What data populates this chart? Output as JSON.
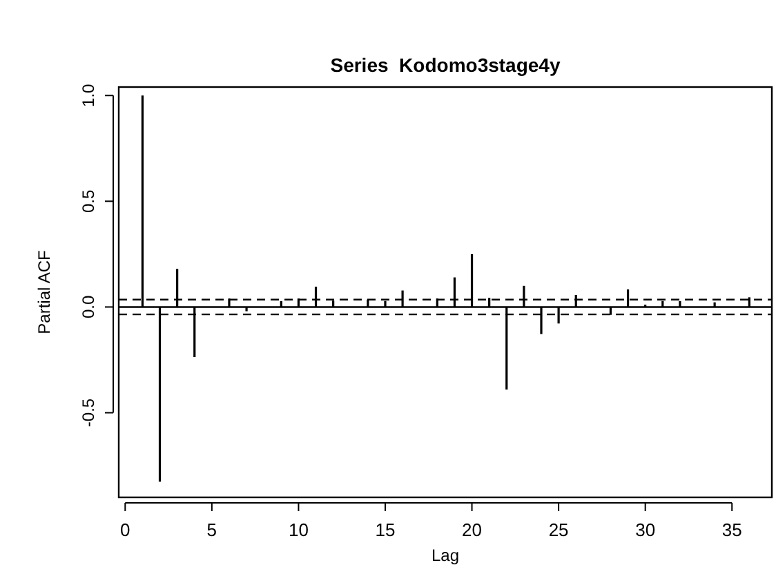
{
  "chart_data": {
    "type": "bar",
    "title": "Series  Kodomo3stage4y",
    "xlabel": "Lag",
    "ylabel": "Partial ACF",
    "x": [
      1,
      2,
      3,
      4,
      5,
      6,
      7,
      8,
      9,
      10,
      11,
      12,
      13,
      14,
      15,
      16,
      17,
      18,
      19,
      20,
      21,
      22,
      23,
      24,
      25,
      26,
      27,
      28,
      29,
      30,
      31,
      32,
      33,
      34,
      35,
      36
    ],
    "values": [
      1.0,
      -0.826,
      0.18,
      -0.237,
      null,
      0.04,
      -0.02,
      null,
      0.028,
      0.04,
      0.096,
      0.03,
      null,
      0.035,
      0.028,
      0.078,
      null,
      0.04,
      0.14,
      0.25,
      0.043,
      -0.39,
      0.1,
      -0.128,
      -0.078,
      0.057,
      null,
      -0.037,
      0.083,
      0.011,
      0.028,
      0.028,
      null,
      0.022,
      null,
      0.046
    ],
    "color": "#000000",
    "xlim": [
      -0.37,
      37.3
    ],
    "ylim": [
      -0.9,
      1.04
    ],
    "xticks": [
      0,
      5,
      10,
      15,
      20,
      25,
      30,
      35
    ],
    "yticks": [
      {
        "value": -0.5,
        "label": "-0.5"
      },
      {
        "value": 0,
        "label": "0.0"
      },
      {
        "value": 0.5,
        "label": "0.5"
      },
      {
        "value": 1,
        "label": "1.0"
      }
    ],
    "grid": false,
    "ref_lines": [
      {
        "axis": "y",
        "value": 0,
        "color": "#000000",
        "line_style": "solid"
      },
      {
        "axis": "y",
        "value": 0.035,
        "color": "#000000",
        "line_style": "dashed"
      },
      {
        "axis": "y",
        "value": -0.035,
        "color": "#000000",
        "line_style": "dashed"
      }
    ]
  }
}
